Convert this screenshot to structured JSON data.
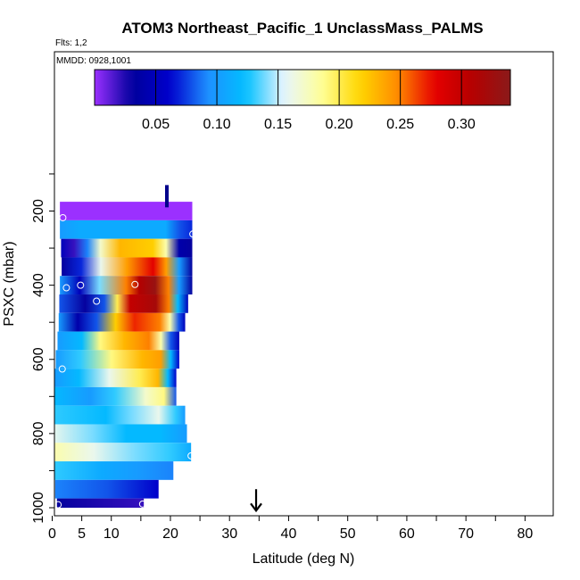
{
  "chart_data": {
    "type": "heatmap",
    "title": "ATOM3 Northeast_Pacific_1 UnclassMass_PALMS",
    "flights_label": "Flts: 1,2",
    "dates_label": "MMDD: 0928,1001",
    "xlabel": "Latitude (deg N)",
    "ylabel": "PSXC (mbar)",
    "xlim": [
      0,
      85
    ],
    "ylim": [
      1000,
      0
    ],
    "x_ticks": [
      0,
      5,
      10,
      20,
      30,
      40,
      50,
      60,
      70,
      80
    ],
    "y_ticks": [
      200,
      400,
      600,
      800,
      1000
    ],
    "colorbar": {
      "range": [
        0,
        0.34
      ],
      "ticks": [
        0.05,
        0.1,
        0.15,
        0.2,
        0.25,
        0.3
      ],
      "tick_labels": [
        "0.05",
        "0.10",
        "0.15",
        "0.20",
        "0.25",
        "0.30"
      ],
      "colors": [
        "#9b30ff",
        "#00009b",
        "#0000cd",
        "#1e90ff",
        "#00bfff",
        "#e6f5ff",
        "#ffff99",
        "#ffd700",
        "#ff8c00",
        "#e60000",
        "#b40000",
        "#8b1a1a"
      ]
    },
    "rows": [
      {
        "p_top": 175,
        "p_bot": 225,
        "x0": 1.3,
        "x1": 23.7,
        "values": [
          [
            0,
            0.0
          ],
          [
            0.5,
            0.0
          ],
          [
            1,
            0.0
          ]
        ]
      },
      {
        "p_top": 225,
        "p_bot": 275,
        "x0": 1.3,
        "x1": 23.7,
        "values": [
          [
            0,
            0.1
          ],
          [
            0.15,
            0.11
          ],
          [
            0.8,
            0.11
          ],
          [
            0.9,
            0.08
          ],
          [
            1,
            0.07
          ]
        ]
      },
      {
        "p_top": 275,
        "p_bot": 325,
        "x0": 1.5,
        "x1": 23.7,
        "values": [
          [
            0,
            0.05
          ],
          [
            0.1,
            0.02
          ],
          [
            0.2,
            0.09
          ],
          [
            0.3,
            0.17
          ],
          [
            0.45,
            0.23
          ],
          [
            0.7,
            0.22
          ],
          [
            0.8,
            0.18
          ],
          [
            0.9,
            0.04
          ],
          [
            1,
            0.03
          ]
        ]
      },
      {
        "p_top": 325,
        "p_bot": 375,
        "x0": 1.6,
        "x1": 23.7,
        "values": [
          [
            0,
            0.03
          ],
          [
            0.15,
            0.07
          ],
          [
            0.3,
            0.16
          ],
          [
            0.5,
            0.24
          ],
          [
            0.7,
            0.28
          ],
          [
            0.8,
            0.24
          ],
          [
            0.9,
            0.1
          ],
          [
            1,
            0.03
          ]
        ]
      },
      {
        "p_top": 375,
        "p_bot": 425,
        "x0": 1.3,
        "x1": 23.7,
        "values": [
          [
            0,
            0.1
          ],
          [
            0.15,
            0.05
          ],
          [
            0.3,
            0.14
          ],
          [
            0.5,
            0.25
          ],
          [
            0.6,
            0.31
          ],
          [
            0.72,
            0.33
          ],
          [
            0.82,
            0.25
          ],
          [
            0.9,
            0.1
          ],
          [
            1,
            0.03
          ]
        ]
      },
      {
        "p_top": 425,
        "p_bot": 475,
        "x0": 1.2,
        "x1": 23.0,
        "values": [
          [
            0,
            0.08
          ],
          [
            0.2,
            0.03
          ],
          [
            0.35,
            0.08
          ],
          [
            0.45,
            0.2
          ],
          [
            0.55,
            0.3
          ],
          [
            0.75,
            0.32
          ],
          [
            0.85,
            0.25
          ],
          [
            0.92,
            0.12
          ],
          [
            1,
            0.05
          ]
        ]
      },
      {
        "p_top": 475,
        "p_bot": 525,
        "x0": 1.1,
        "x1": 22.5,
        "values": [
          [
            0,
            0.1
          ],
          [
            0.15,
            0.04
          ],
          [
            0.3,
            0.08
          ],
          [
            0.45,
            0.22
          ],
          [
            0.6,
            0.27
          ],
          [
            0.8,
            0.25
          ],
          [
            0.88,
            0.18
          ],
          [
            0.95,
            0.08
          ],
          [
            1,
            0.05
          ]
        ]
      },
      {
        "p_top": 525,
        "p_bot": 575,
        "x0": 0.9,
        "x1": 21.5,
        "values": [
          [
            0,
            0.1
          ],
          [
            0.2,
            0.12
          ],
          [
            0.35,
            0.19
          ],
          [
            0.55,
            0.23
          ],
          [
            0.75,
            0.25
          ],
          [
            0.85,
            0.18
          ],
          [
            0.93,
            0.08
          ],
          [
            1,
            0.05
          ]
        ]
      },
      {
        "p_top": 575,
        "p_bot": 625,
        "x0": 0.6,
        "x1": 21.5,
        "values": [
          [
            0,
            0.1
          ],
          [
            0.2,
            0.13
          ],
          [
            0.45,
            0.19
          ],
          [
            0.7,
            0.23
          ],
          [
            0.85,
            0.24
          ],
          [
            0.93,
            0.12
          ],
          [
            1,
            0.06
          ]
        ]
      },
      {
        "p_top": 625,
        "p_bot": 675,
        "x0": 0.4,
        "x1": 21.0,
        "values": [
          [
            0,
            0.1
          ],
          [
            0.2,
            0.12
          ],
          [
            0.45,
            0.16
          ],
          [
            0.7,
            0.2
          ],
          [
            0.85,
            0.23
          ],
          [
            0.93,
            0.12
          ],
          [
            1,
            0.06
          ]
        ]
      },
      {
        "p_top": 675,
        "p_bot": 725,
        "x0": 0.2,
        "x1": 21.0,
        "values": [
          [
            0,
            0.12
          ],
          [
            0.3,
            0.1
          ],
          [
            0.5,
            0.13
          ],
          [
            0.75,
            0.17
          ],
          [
            0.9,
            0.19
          ],
          [
            1,
            0.08
          ]
        ]
      },
      {
        "p_top": 725,
        "p_bot": 775,
        "x0": 0.1,
        "x1": 22.5,
        "values": [
          [
            0,
            0.13
          ],
          [
            0.4,
            0.12
          ],
          [
            0.6,
            0.14
          ],
          [
            0.8,
            0.16
          ],
          [
            0.93,
            0.13
          ],
          [
            1,
            0.1
          ]
        ]
      },
      {
        "p_top": 775,
        "p_bot": 825,
        "x0": 0,
        "x1": 22.8,
        "values": [
          [
            0,
            0.16
          ],
          [
            0.3,
            0.14
          ],
          [
            0.55,
            0.12
          ],
          [
            0.8,
            0.12
          ],
          [
            1,
            0.1
          ]
        ]
      },
      {
        "p_top": 825,
        "p_bot": 875,
        "x0": 0,
        "x1": 23.5,
        "values": [
          [
            0,
            0.18
          ],
          [
            0.3,
            0.16
          ],
          [
            0.6,
            0.14
          ],
          [
            0.85,
            0.13
          ],
          [
            1,
            0.11
          ]
        ]
      },
      {
        "p_top": 875,
        "p_bot": 925,
        "x0": 0.3,
        "x1": 20.5,
        "values": [
          [
            0,
            0.13
          ],
          [
            0.4,
            0.11
          ],
          [
            0.7,
            0.1
          ],
          [
            1,
            0.09
          ]
        ]
      },
      {
        "p_top": 925,
        "p_bot": 975,
        "x0": 0.5,
        "x1": 18.0,
        "values": [
          [
            0,
            0.09
          ],
          [
            0.5,
            0.08
          ],
          [
            1,
            0.06
          ]
        ]
      },
      {
        "p_top": 975,
        "p_bot": 1000,
        "x0": 0.8,
        "x1": 15.5,
        "values": [
          [
            0,
            0.03
          ],
          [
            1,
            0.02
          ]
        ]
      }
    ],
    "sample_points": [
      {
        "x": 1.8,
        "y": 218
      },
      {
        "x": 23.8,
        "y": 262
      },
      {
        "x": 2.4,
        "y": 407
      },
      {
        "x": 4.8,
        "y": 400
      },
      {
        "x": 14.0,
        "y": 398
      },
      {
        "x": 7.5,
        "y": 443
      },
      {
        "x": 1.7,
        "y": 626
      },
      {
        "x": 23.5,
        "y": 860
      },
      {
        "x": 1.0,
        "y": 992
      },
      {
        "x": 15.3,
        "y": 990
      }
    ],
    "markers": [
      {
        "kind": "vertical-bar",
        "x": 19.4,
        "y_from": 130,
        "y_to": 190
      },
      {
        "kind": "down-arrow",
        "x": 34.5,
        "y_from": 950,
        "y_to": 1008
      }
    ]
  }
}
